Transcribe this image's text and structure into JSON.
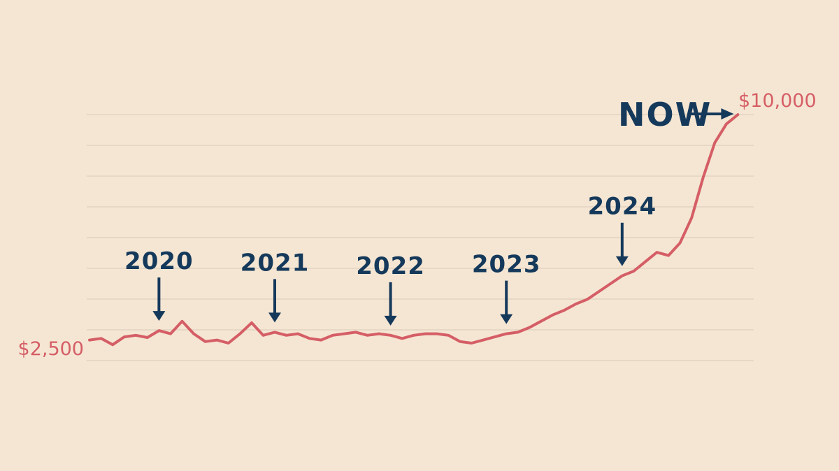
{
  "colors": {
    "background": "#f5e6d3",
    "line": "#d55e66",
    "annotation": "#15395b",
    "grid": "#d9cbb8"
  },
  "chart_data": {
    "type": "line",
    "title": "",
    "xlabel": "",
    "ylabel": "",
    "xlim": [
      2019.4,
      2025.1
    ],
    "ylim": [
      2500,
      10000
    ],
    "grid": true,
    "start_label": "$2,500",
    "end_label": "$10,000",
    "series": [
      {
        "x": [
          2019.4,
          2019.5,
          2019.6,
          2019.7,
          2019.8,
          2019.9,
          2020.0,
          2020.1,
          2020.2,
          2020.3,
          2020.4,
          2020.5,
          2020.6,
          2020.7,
          2020.8,
          2020.9,
          2021.0,
          2021.1,
          2021.2,
          2021.3,
          2021.4,
          2021.5,
          2021.6,
          2021.7,
          2021.8,
          2021.9,
          2022.0,
          2022.1,
          2022.2,
          2022.3,
          2022.4,
          2022.5,
          2022.6,
          2022.7,
          2022.8,
          2022.9,
          2023.0,
          2023.1,
          2023.2,
          2023.3,
          2023.4,
          2023.5,
          2023.6,
          2023.7,
          2023.8,
          2023.9,
          2024.0,
          2024.1,
          2024.2,
          2024.3,
          2024.4,
          2024.5,
          2024.6,
          2024.7,
          2024.8,
          2024.9,
          2024.95,
          2025.0
        ],
        "values": [
          2800,
          2850,
          2650,
          2900,
          2950,
          2880,
          3100,
          3000,
          3400,
          3000,
          2750,
          2800,
          2700,
          3000,
          3350,
          2950,
          3050,
          2950,
          3000,
          2850,
          2800,
          2950,
          3000,
          3050,
          2950,
          3000,
          2950,
          2850,
          2950,
          3000,
          3000,
          2950,
          2750,
          2700,
          2800,
          2900,
          3000,
          3050,
          3200,
          3400,
          3600,
          3750,
          3950,
          4100,
          4350,
          4600,
          4850,
          5000,
          5300,
          5600,
          5500,
          5900,
          6700,
          8000,
          9100,
          9700,
          9850,
          10000
        ]
      }
    ],
    "annotations": {
      "now": "NOW",
      "years": [
        {
          "label": "2020",
          "x": 2020.0
        },
        {
          "label": "2021",
          "x": 2021.0
        },
        {
          "label": "2022",
          "x": 2022.0
        },
        {
          "label": "2023",
          "x": 2023.0
        },
        {
          "label": "2024",
          "x": 2024.0
        }
      ]
    }
  }
}
